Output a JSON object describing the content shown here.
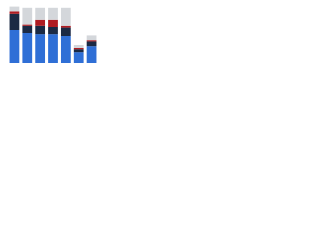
{
  "chart_data": {
    "type": "stacked_bar",
    "categories": [
      null,
      null,
      null,
      null,
      null,
      null,
      null
    ],
    "series": [
      {
        "color": "#2f6fd6",
        "values": [
          55,
          50,
          48,
          48,
          45,
          18,
          28
        ]
      },
      {
        "color": "#1b2a44",
        "values": [
          27,
          12,
          14,
          12,
          14,
          5,
          8
        ]
      },
      {
        "color": "#b01c22",
        "values": [
          4,
          2,
          10,
          12,
          3,
          2,
          2
        ]
      },
      {
        "color": "#d4d7db",
        "values": [
          8,
          28,
          20,
          20,
          30,
          5,
          8
        ]
      }
    ],
    "ylim": [
      0,
      100
    ]
  }
}
